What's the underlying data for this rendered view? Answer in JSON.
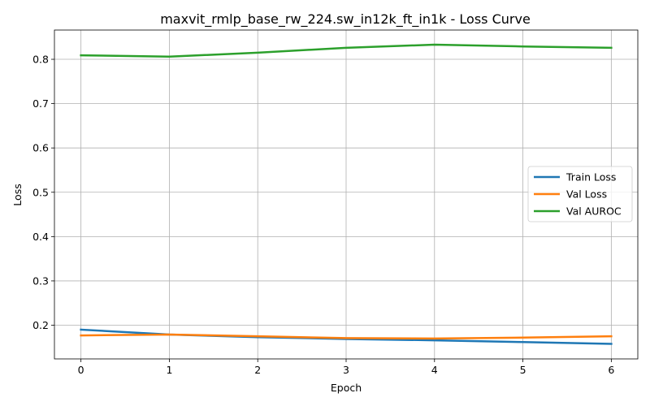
{
  "chart_data": {
    "type": "line",
    "title": "maxvit_rmlp_base_rw_224.sw_in12k_ft_in1k - Loss Curve",
    "xlabel": "Epoch",
    "ylabel": "Loss",
    "x": [
      0,
      1,
      2,
      3,
      4,
      5,
      6
    ],
    "xlim": [
      -0.3,
      6.3
    ],
    "ylim": [
      0.124,
      0.866
    ],
    "xticks": [
      0,
      1,
      2,
      3,
      4,
      5,
      6
    ],
    "yticks": [
      0.2,
      0.3,
      0.4,
      0.5,
      0.6,
      0.7,
      0.8
    ],
    "ytick_labels": [
      "0.2",
      "0.3",
      "0.4",
      "0.5",
      "0.6",
      "0.7",
      "0.8"
    ],
    "grid": true,
    "legend_position": "center-right",
    "series": [
      {
        "name": "Train Loss",
        "color": "#1f77b4",
        "values": [
          0.19,
          0.179,
          0.173,
          0.169,
          0.166,
          0.162,
          0.158
        ]
      },
      {
        "name": "Val Loss",
        "color": "#ff7f0e",
        "values": [
          0.177,
          0.179,
          0.175,
          0.171,
          0.17,
          0.172,
          0.175
        ]
      },
      {
        "name": "Val AUROC",
        "color": "#2ca02c",
        "values": [
          0.809,
          0.806,
          0.815,
          0.826,
          0.833,
          0.829,
          0.826
        ]
      }
    ]
  }
}
